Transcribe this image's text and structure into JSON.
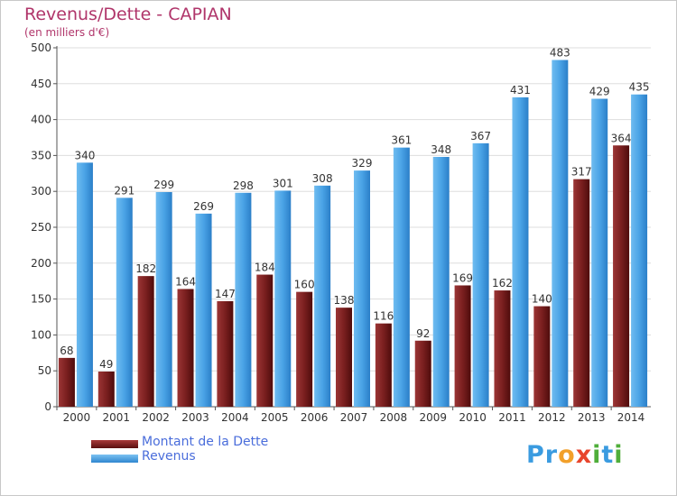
{
  "title": "Revenus/Dette - CAPIAN",
  "subtitle": "(en milliers d'€)",
  "chart_data": {
    "type": "bar",
    "categories": [
      "2000",
      "2001",
      "2002",
      "2003",
      "2004",
      "2005",
      "2006",
      "2007",
      "2008",
      "2009",
      "2010",
      "2011",
      "2012",
      "2013",
      "2014"
    ],
    "series": [
      {
        "name": "Montant de la Dette",
        "values": [
          68,
          49,
          182,
          164,
          147,
          184,
          160,
          138,
          116,
          92,
          169,
          162,
          140,
          317,
          364
        ],
        "color": "#7a1f1f"
      },
      {
        "name": "Revenus",
        "values": [
          340,
          291,
          299,
          269,
          298,
          301,
          308,
          329,
          361,
          348,
          367,
          431,
          483,
          429,
          435
        ],
        "color": "#4aa3e6"
      }
    ],
    "ylim": [
      0,
      500
    ],
    "yticks": [
      0,
      50,
      100,
      150,
      200,
      250,
      300,
      350,
      400,
      450,
      500
    ],
    "grid": true,
    "legend": "bottom-left"
  },
  "logo": {
    "letters": [
      "P",
      "r",
      "o",
      "x",
      "i",
      "t",
      "i"
    ],
    "colors": [
      "#3a9be0",
      "#3a9be0",
      "#f2a02a",
      "#e8452c",
      "#4fae3a",
      "#3a9be0",
      "#4fae3a"
    ]
  }
}
